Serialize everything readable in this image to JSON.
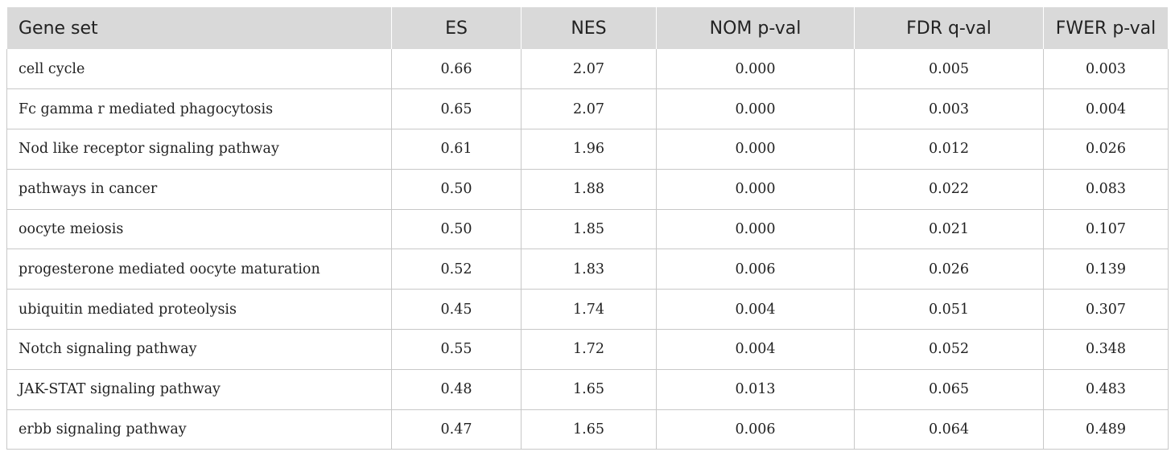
{
  "table": {
    "headers": [
      "Gene set",
      "ES",
      "NES",
      "NOM p-val",
      "FDR q-val",
      "FWER p-val"
    ],
    "rows": [
      [
        "cell cycle",
        "0.66",
        "2.07",
        "0.000",
        "0.005",
        "0.003"
      ],
      [
        "Fc gamma r mediated phagocytosis",
        "0.65",
        "2.07",
        "0.000",
        "0.003",
        "0.004"
      ],
      [
        "Nod like receptor signaling pathway",
        "0.61",
        "1.96",
        "0.000",
        "0.012",
        "0.026"
      ],
      [
        "pathways in cancer",
        "0.50",
        "1.88",
        "0.000",
        "0.022",
        "0.083"
      ],
      [
        "oocyte meiosis",
        "0.50",
        "1.85",
        "0.000",
        "0.021",
        "0.107"
      ],
      [
        "progesterone mediated oocyte maturation",
        "0.52",
        "1.83",
        "0.006",
        "0.026",
        "0.139"
      ],
      [
        "ubiquitin mediated proteolysis",
        "0.45",
        "1.74",
        "0.004",
        "0.051",
        "0.307"
      ],
      [
        "Notch signaling pathway",
        "0.55",
        "1.72",
        "0.004",
        "0.052",
        "0.348"
      ],
      [
        "JAK-STAT signaling pathway",
        "0.48",
        "1.65",
        "0.013",
        "0.065",
        "0.483"
      ],
      [
        "erbb signaling pathway",
        "0.47",
        "1.65",
        "0.006",
        "0.064",
        "0.489"
      ]
    ]
  }
}
